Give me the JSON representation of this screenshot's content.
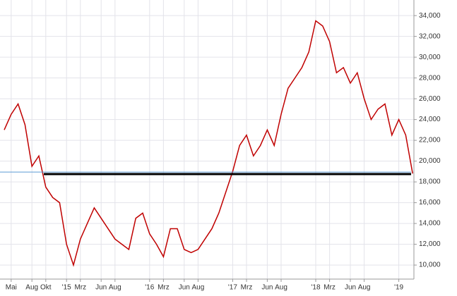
{
  "chart_data": {
    "type": "line",
    "categories": [
      null,
      "Mai",
      null,
      null,
      "Aug",
      null,
      "Okt",
      null,
      null,
      "'15",
      null,
      "Mrz",
      null,
      null,
      "Jun",
      null,
      "Aug",
      null,
      null,
      null,
      null,
      "'16",
      null,
      "Mrz",
      null,
      null,
      "Jun",
      null,
      "Aug",
      null,
      null,
      null,
      null,
      "'17",
      null,
      "Mrz",
      null,
      null,
      "Jun",
      null,
      "Aug",
      null,
      null,
      null,
      null,
      "'18",
      null,
      "Mrz",
      null,
      null,
      "Jun",
      null,
      "Aug",
      null,
      null,
      null,
      null,
      "'19",
      null,
      null
    ],
    "series": [
      {
        "color": "#c00000",
        "values": [
          23000,
          24500,
          25500,
          23500,
          19500,
          20500,
          17500,
          16500,
          16000,
          12000,
          10000,
          12500,
          14000,
          15500,
          14500,
          13500,
          12500,
          12000,
          11500,
          14500,
          15000,
          13000,
          12000,
          10800,
          13500,
          13500,
          11500,
          11200,
          11500,
          12500,
          13500,
          15000,
          17000,
          19000,
          21500,
          22500,
          20500,
          21500,
          23000,
          21500,
          24500,
          27000,
          28000,
          29000,
          30500,
          33500,
          33000,
          31500,
          28500,
          29000,
          27500,
          28500,
          26000,
          24000,
          25000,
          25500,
          22500,
          24000,
          22500,
          18800
        ]
      }
    ],
    "ylim": [
      8650,
      35500
    ],
    "yticks": [
      {
        "value": 10000,
        "label": "10,000"
      },
      {
        "value": 12000,
        "label": "12,000"
      },
      {
        "value": 14000,
        "label": "14,000"
      },
      {
        "value": 16000,
        "label": "16,000"
      },
      {
        "value": 18000,
        "label": "18,000"
      },
      {
        "value": 20000,
        "label": "20,000"
      },
      {
        "value": 22000,
        "label": "22,000"
      },
      {
        "value": 24000,
        "label": "24,000"
      },
      {
        "value": 26000,
        "label": "26,000"
      },
      {
        "value": 28000,
        "label": "28,000"
      },
      {
        "value": 30000,
        "label": "30,000"
      },
      {
        "value": 32000,
        "label": "32,000"
      },
      {
        "value": 34000,
        "label": "34,000"
      }
    ],
    "reference_lines": [
      {
        "value": 18950,
        "color": "#5b9bd5"
      },
      {
        "value": 18750,
        "color": "#000000"
      }
    ],
    "grid": true
  }
}
